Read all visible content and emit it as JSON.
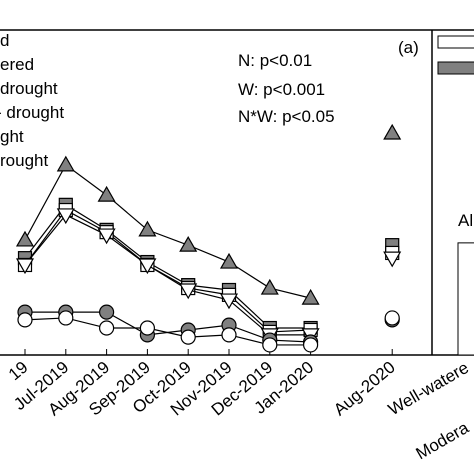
{
  "chart_data": {
    "type": "line",
    "annotations": [
      "N: p<0.01",
      "W: p<0.001",
      "N*W: p<0.05",
      "(a)",
      "Al"
    ],
    "categories": [
      "19",
      "Jul-2019",
      "Aug-2019",
      "Sep-2019",
      "Oct-2019",
      "Nov-2019",
      "Dec-2019",
      "Jan-2020",
      null,
      "Aug-2020"
    ],
    "ylim": [
      0,
      100
    ],
    "series": [
      {
        "name": "d",
        "color": "#808080",
        "marker": "triangle",
        "values": [
          35.4,
          58.5,
          49.2,
          38.5,
          33.8,
          28.6,
          20.6,
          17.5,
          null,
          68.3
        ]
      },
      {
        "name": "ered",
        "color": "#808080",
        "marker": "square",
        "values": [
          29.8,
          46.2,
          38.5,
          28.6,
          21.5,
          20,
          8.3,
          8.3,
          null,
          33.8
        ]
      },
      {
        "name": "drought",
        "color": "#ffffff",
        "marker": "square",
        "values": [
          27.7,
          44.6,
          37.8,
          27.7,
          20.6,
          18.5,
          7.1,
          7.7,
          null,
          31.4
        ]
      },
      {
        "name": "- drought",
        "color": "#ffffff",
        "marker": "triangle-down",
        "values": [
          27.7,
          43.1,
          36.9,
          27.7,
          20,
          16.9,
          6.2,
          6.2,
          null,
          29.8
        ]
      },
      {
        "name": "ght",
        "color": "#808080",
        "marker": "circle",
        "values": [
          13.2,
          13.2,
          13.2,
          6.2,
          7.7,
          9.2,
          4.6,
          4,
          null,
          10.8
        ]
      },
      {
        "name": "rought",
        "color": "#ffffff",
        "marker": "circle",
        "values": [
          10.8,
          11.4,
          8.3,
          8.3,
          5.5,
          6.2,
          3.1,
          3.1,
          null,
          11.4
        ]
      }
    ],
    "bar_panel": {
      "categories": [
        "Well-watere",
        "Modera"
      ],
      "values": [
        34.5,
        null
      ],
      "legend_colors": [
        "#ffffff",
        "#808080"
      ]
    }
  }
}
